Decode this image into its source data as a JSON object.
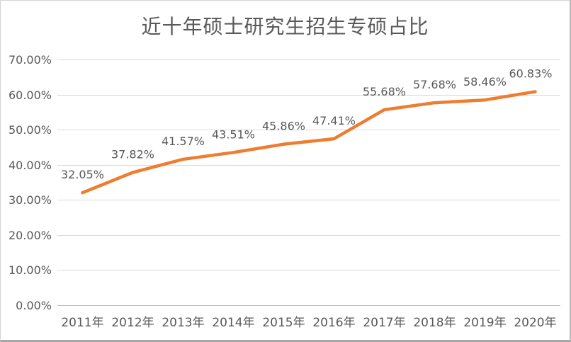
{
  "page": {
    "background": "#ffffff"
  },
  "chart_data": {
    "type": "line",
    "title": "近十年硕士研究生招生专硕占比",
    "categories": [
      "2011年",
      "2012年",
      "2013年",
      "2014年",
      "2015年",
      "2016年",
      "2017年",
      "2018年",
      "2019年",
      "2020年"
    ],
    "values": [
      32.05,
      37.82,
      41.57,
      43.51,
      45.86,
      47.41,
      55.68,
      57.68,
      58.46,
      60.83
    ],
    "data_labels": [
      "32.05%",
      "37.82%",
      "41.57%",
      "43.51%",
      "45.86%",
      "47.41%",
      "55.68%",
      "57.68%",
      "58.46%",
      "60.83%"
    ],
    "y_ticks": [
      "70.00%",
      "60.00%",
      "50.00%",
      "40.00%",
      "30.00%",
      "20.00%",
      "10.00%",
      "0.00%"
    ],
    "ylim": [
      0,
      70
    ],
    "y_tick_step": 10,
    "xlabel": "",
    "ylabel": "",
    "grid": true,
    "legend": "none",
    "colors": {
      "line": "#ED7D31",
      "text": "#595959",
      "grid": "#D9D9D9",
      "axis": "#BFBFBF"
    }
  }
}
